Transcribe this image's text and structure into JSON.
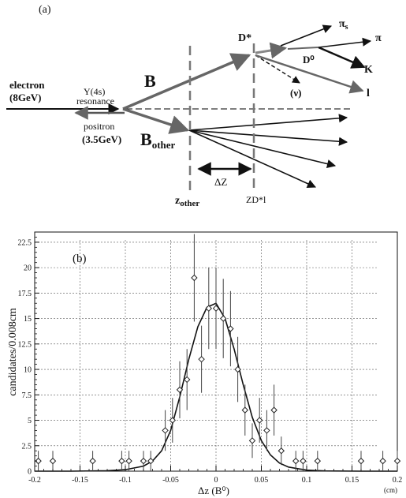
{
  "figure_a": {
    "panel_label": "(a)",
    "electron_label": "electron",
    "electron_energy": "(8GeV)",
    "upsilon_label": "Υ(4s)",
    "resonance_label": "resonance",
    "positron_label": "positron",
    "positron_energy": "(3.5GeV)",
    "b_label": "B",
    "b_other_main": "B",
    "b_other_sub": "other",
    "d_star_label": "D*",
    "d0_label": "D⁰",
    "pi_s_label": "πs",
    "pi_label": "π",
    "k_label": "K",
    "nu_label": "(ν)",
    "lepton_label": "l",
    "delta_z_label": "ΔZ",
    "z_other_main": "z",
    "z_other_sub": "other",
    "zdl_label": "ZD*l"
  },
  "figure_b": {
    "panel_label": "(b)",
    "units_label": "(cm)"
  },
  "chart_data": {
    "type": "scatter",
    "xlabel": "Δz (B⁰)",
    "ylabel": "candidates/0.008cm",
    "xlim": [
      -0.2,
      0.2
    ],
    "ylim": [
      0,
      23.5
    ],
    "x_ticks": [
      -0.2,
      -0.15,
      -0.1,
      -0.05,
      0,
      0.05,
      0.1,
      0.15,
      0.2
    ],
    "x_tick_labels": [
      "-0.2",
      "-0.15",
      "-0.1",
      "-0.05",
      "0",
      "0.05",
      "0.1",
      "0.15",
      "0.2"
    ],
    "y_ticks": [
      0,
      2.5,
      5,
      7.5,
      10,
      12.5,
      15,
      17.5,
      20,
      22.5
    ],
    "y_tick_labels": [
      "0",
      "2.5",
      "5",
      "7.5",
      "10",
      "12.5",
      "15",
      "17.5",
      "20",
      "22.5"
    ],
    "grid": true,
    "points": [
      {
        "x": -0.196,
        "y": 1,
        "err": 1
      },
      {
        "x": -0.18,
        "y": 1,
        "err": 1
      },
      {
        "x": -0.136,
        "y": 1,
        "err": 1
      },
      {
        "x": -0.104,
        "y": 1,
        "err": 1
      },
      {
        "x": -0.096,
        "y": 1,
        "err": 1
      },
      {
        "x": -0.08,
        "y": 1,
        "err": 1
      },
      {
        "x": -0.072,
        "y": 1,
        "err": 1
      },
      {
        "x": -0.056,
        "y": 4,
        "err": 2
      },
      {
        "x": -0.048,
        "y": 5,
        "err": 2.2
      },
      {
        "x": -0.04,
        "y": 8,
        "err": 2.8
      },
      {
        "x": -0.032,
        "y": 9,
        "err": 3
      },
      {
        "x": -0.024,
        "y": 19,
        "err": 4.3
      },
      {
        "x": -0.016,
        "y": 11,
        "err": 3.3
      },
      {
        "x": -0.008,
        "y": 16,
        "err": 4
      },
      {
        "x": 0,
        "y": 16,
        "err": 4
      },
      {
        "x": 0.008,
        "y": 15,
        "err": 3.9
      },
      {
        "x": 0.016,
        "y": 14,
        "err": 3.7
      },
      {
        "x": 0.024,
        "y": 10,
        "err": 3.2
      },
      {
        "x": 0.032,
        "y": 6,
        "err": 2.5
      },
      {
        "x": 0.04,
        "y": 3,
        "err": 1.7
      },
      {
        "x": 0.048,
        "y": 5,
        "err": 2.2
      },
      {
        "x": 0.056,
        "y": 4,
        "err": 2
      },
      {
        "x": 0.064,
        "y": 6,
        "err": 2.5
      },
      {
        "x": 0.072,
        "y": 2,
        "err": 1.4
      },
      {
        "x": 0.088,
        "y": 1,
        "err": 1
      },
      {
        "x": 0.096,
        "y": 1,
        "err": 1
      },
      {
        "x": 0.112,
        "y": 1,
        "err": 1
      },
      {
        "x": 0.16,
        "y": 1,
        "err": 1
      },
      {
        "x": 0.184,
        "y": 1,
        "err": 1
      },
      {
        "x": 0.2,
        "y": 1,
        "err": 1
      }
    ],
    "fit_curve": {
      "x": [
        -0.2,
        -0.16,
        -0.12,
        -0.1,
        -0.08,
        -0.07,
        -0.06,
        -0.05,
        -0.04,
        -0.03,
        -0.02,
        -0.01,
        0,
        0.01,
        0.02,
        0.03,
        0.04,
        0.05,
        0.06,
        0.07,
        0.08,
        0.1,
        0.12,
        0.16,
        0.2
      ],
      "y": [
        0,
        0,
        0.05,
        0.15,
        0.5,
        1.0,
        2.0,
        4.0,
        7.3,
        11.0,
        14.2,
        16.1,
        16.5,
        15.0,
        12.0,
        8.5,
        5.3,
        3.0,
        1.6,
        0.8,
        0.4,
        0.1,
        0.02,
        0,
        0
      ]
    }
  }
}
